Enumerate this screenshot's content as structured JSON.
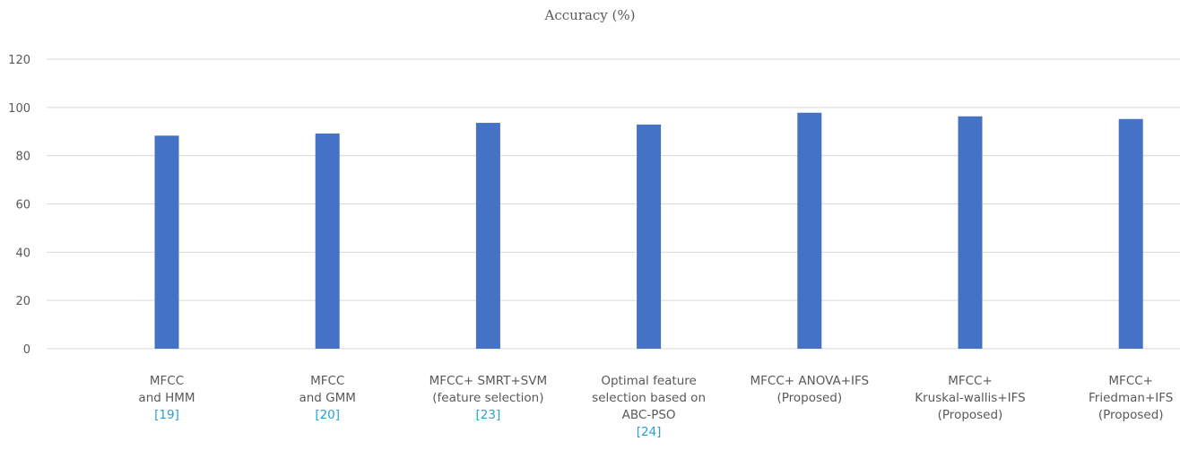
{
  "chart_data": {
    "type": "bar",
    "title": "Accuracy (%)",
    "xlabel": "",
    "ylabel": "",
    "ylim": [
      0,
      120
    ],
    "yticks": [
      0,
      20,
      40,
      60,
      80,
      100,
      120
    ],
    "grid": true,
    "bar_color": "#4472C4",
    "grid_color": "#D9D9D9",
    "cite_color": "#2A9FD6",
    "categories": [
      {
        "lines": [
          "MFCC",
          "and HMM"
        ],
        "cite": "[19]"
      },
      {
        "lines": [
          "MFCC",
          "and GMM"
        ],
        "cite": "[20]"
      },
      {
        "lines": [
          "MFCC+ SMRT+SVM",
          "(feature selection)"
        ],
        "cite": "[23]"
      },
      {
        "lines": [
          "Optimal feature",
          "selection based on",
          "ABC-PSO"
        ],
        "cite": "[24]"
      },
      {
        "lines": [
          "MFCC+ ANOVA+IFS",
          "(Proposed)"
        ],
        "cite": ""
      },
      {
        "lines": [
          "MFCC+",
          "Kruskal-wallis+IFS",
          "(Proposed)"
        ],
        "cite": ""
      },
      {
        "lines": [
          "MFCC+",
          "Friedman+IFS",
          "(Proposed)"
        ],
        "cite": ""
      }
    ],
    "values": [
      88.3,
      89.2,
      93.6,
      92.9,
      97.8,
      96.3,
      95.2
    ]
  }
}
